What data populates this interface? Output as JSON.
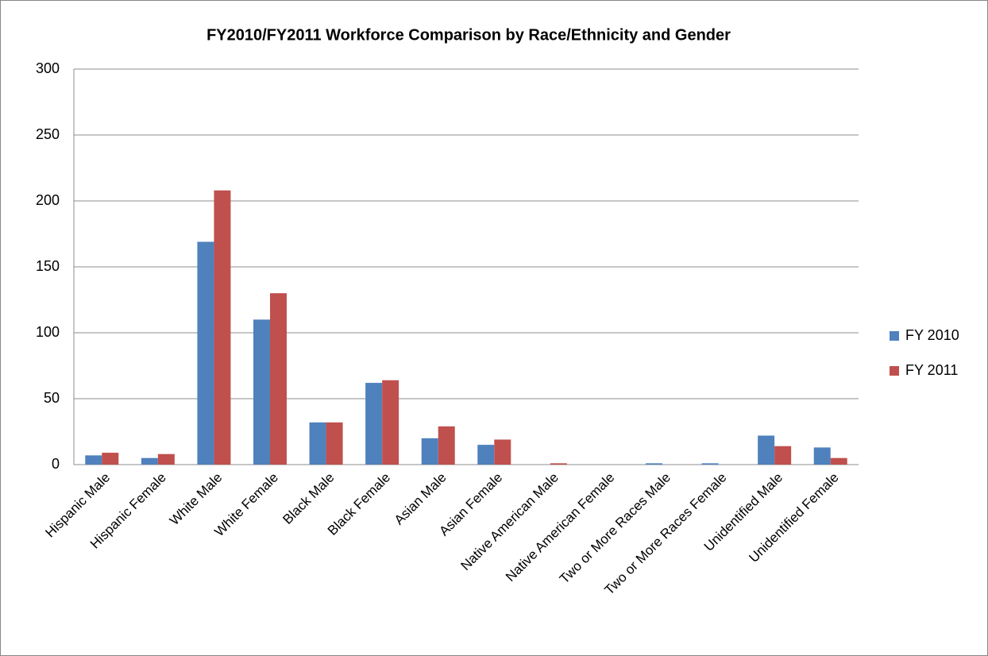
{
  "chart_data": {
    "type": "bar",
    "title": "FY2010/FY2011 Workforce Comparison by Race/Ethnicity and Gender",
    "categories": [
      "Hispanic Male",
      "Hispanic Female",
      "White Male",
      "White Female",
      "Black Male",
      "Black Female",
      "Asian Male",
      "Asian Female",
      "Native American Male",
      "Native American Female",
      "Two or More Races Male",
      "Two or More Races Female",
      "Unidentified Male",
      "Unidentified Female"
    ],
    "series": [
      {
        "name": "FY 2010",
        "color": "#4f81bd",
        "values": [
          7,
          5,
          169,
          110,
          32,
          62,
          20,
          15,
          0,
          0,
          1,
          1,
          22,
          13
        ]
      },
      {
        "name": "FY 2011",
        "color": "#c0504d",
        "values": [
          9,
          8,
          208,
          130,
          32,
          64,
          29,
          19,
          1,
          0,
          0,
          0,
          14,
          5
        ]
      }
    ],
    "ylim": [
      0,
      300
    ],
    "yticks": [
      0,
      50,
      100,
      150,
      200,
      250,
      300
    ],
    "grid": true,
    "legend": "right"
  }
}
